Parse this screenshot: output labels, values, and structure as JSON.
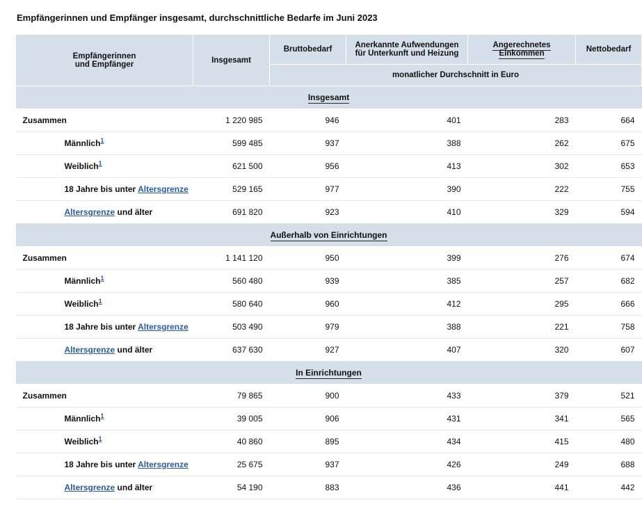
{
  "title": "Empfängerinnen und Empfänger insgesamt, durchschnittliche Bedarfe im Juni 2023",
  "terms": {
    "altersgrenze": "Altersgrenze",
    "und_aelter": " und älter",
    "bis_unter": "18 Jahre bis unter ",
    "maennlich": "Männlich",
    "weiblich": "Weiblich",
    "fn1": "1"
  },
  "header": {
    "recipients_l1": "Empfängerinnen",
    "recipients_l2": "und Empfänger",
    "insgesamt": "Insgesamt",
    "bruttobedarf": "Bruttobedarf",
    "aufwendungen_l1": "Anerkannte Aufwendungen",
    "aufwendungen_l2": "für Unterkunft und Heizung",
    "einkommen": "Angerechnetes Einkommen",
    "nettobedarf": "Nettobedarf",
    "subhead": "monatlicher Durchschnitt in Euro"
  },
  "sections": [
    {
      "title": "Insgesamt",
      "rows": [
        {
          "kind": "total",
          "label": "Zusammen",
          "ins": "1 220 985",
          "br": "946",
          "auf": "401",
          "ein": "283",
          "net": "664"
        },
        {
          "kind": "indent",
          "labelType": "sex-m",
          "ins": "599 485",
          "br": "937",
          "auf": "388",
          "ein": "262",
          "net": "675"
        },
        {
          "kind": "indent",
          "labelType": "sex-f",
          "ins": "621 500",
          "br": "956",
          "auf": "413",
          "ein": "302",
          "net": "653"
        },
        {
          "kind": "indent",
          "labelType": "age-under",
          "ins": "529 165",
          "br": "977",
          "auf": "390",
          "ein": "222",
          "net": "755"
        },
        {
          "kind": "indent",
          "labelType": "age-over",
          "ins": "691 820",
          "br": "923",
          "auf": "410",
          "ein": "329",
          "net": "594"
        }
      ]
    },
    {
      "title": "Außerhalb von Einrichtungen",
      "rows": [
        {
          "kind": "total",
          "label": "Zusammen",
          "ins": "1 141 120",
          "br": "950",
          "auf": "399",
          "ein": "276",
          "net": "674"
        },
        {
          "kind": "indent",
          "labelType": "sex-m",
          "ins": "560 480",
          "br": "939",
          "auf": "385",
          "ein": "257",
          "net": "682"
        },
        {
          "kind": "indent",
          "labelType": "sex-f",
          "ins": "580 640",
          "br": "960",
          "auf": "412",
          "ein": "295",
          "net": "666"
        },
        {
          "kind": "indent",
          "labelType": "age-under",
          "ins": "503 490",
          "br": "979",
          "auf": "388",
          "ein": "221",
          "net": "758"
        },
        {
          "kind": "indent",
          "labelType": "age-over",
          "ins": "637 630",
          "br": "927",
          "auf": "407",
          "ein": "320",
          "net": "607"
        }
      ]
    },
    {
      "title": "In Einrichtungen",
      "rows": [
        {
          "kind": "total",
          "label": "Zusammen",
          "ins": "79 865",
          "br": "900",
          "auf": "433",
          "ein": "379",
          "net": "521"
        },
        {
          "kind": "indent",
          "labelType": "sex-m",
          "ins": "39 005",
          "br": "906",
          "auf": "431",
          "ein": "341",
          "net": "565"
        },
        {
          "kind": "indent",
          "labelType": "sex-f",
          "ins": "40 860",
          "br": "895",
          "auf": "434",
          "ein": "415",
          "net": "480"
        },
        {
          "kind": "indent",
          "labelType": "age-under",
          "ins": "25 675",
          "br": "937",
          "auf": "426",
          "ein": "249",
          "net": "688"
        },
        {
          "kind": "indent",
          "labelType": "age-over",
          "ins": "54 190",
          "br": "883",
          "auf": "436",
          "ein": "441",
          "net": "442"
        }
      ]
    }
  ]
}
